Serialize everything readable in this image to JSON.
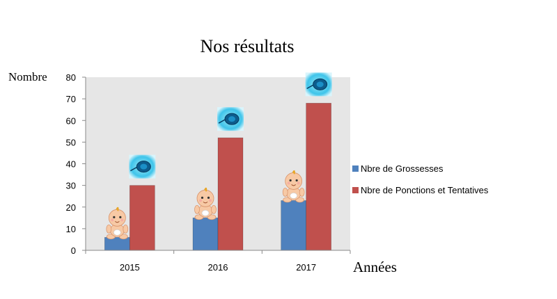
{
  "chart_data": {
    "type": "bar",
    "title": "Nos résultats",
    "xlabel": "Années",
    "ylabel": "Nombre",
    "categories": [
      "2015",
      "2016",
      "2017"
    ],
    "ylim": [
      0,
      80
    ],
    "yticks": [
      0,
      10,
      20,
      30,
      40,
      50,
      60,
      70,
      80
    ],
    "grid": false,
    "legend_position": "right",
    "series": [
      {
        "name": "Nbre de Grossesses",
        "values": [
          6,
          15,
          23
        ],
        "color": "#4f81bd",
        "marker_icon": "baby-icon"
      },
      {
        "name": "Nbre de Ponctions et Tentatives",
        "values": [
          30,
          52,
          68
        ],
        "color": "#c0504d",
        "marker_icon": "oocyte-icon"
      }
    ],
    "plot_background": "#e6e6e6"
  }
}
